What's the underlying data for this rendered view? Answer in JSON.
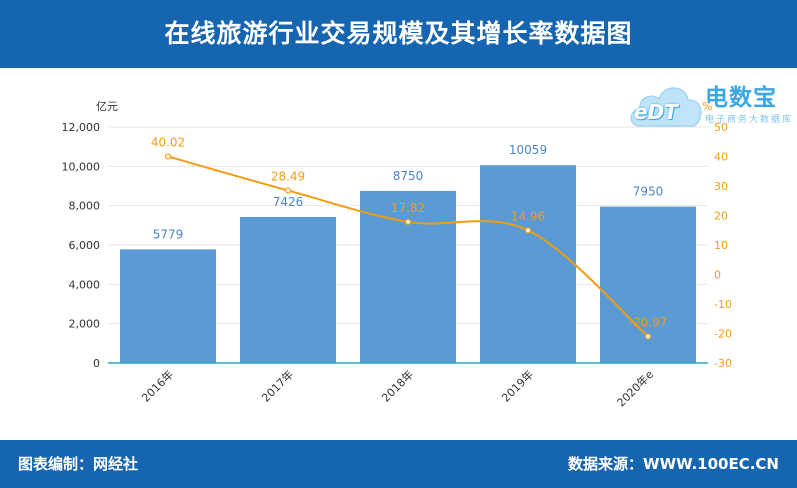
{
  "header": {
    "title": "在线旅游行业交易规模及其增长率数据图"
  },
  "footer": {
    "left": "图表编制：网经社",
    "right": "数据来源：WWW.100EC.CN"
  },
  "logo": {
    "main": "电数宝",
    "sub": "电子商务大数据库",
    "mark": "eDT"
  },
  "colors": {
    "banner": "#1565b0",
    "bar": "#5b9bd5",
    "line": "#f39c12"
  },
  "chart_data": {
    "type": "bar+line",
    "categories": [
      "2016年",
      "2017年",
      "2018年",
      "2019年",
      "2020年e"
    ],
    "series": [
      {
        "values": [
          5779,
          7426,
          8750,
          10059,
          7950
        ],
        "axis": "left",
        "kind": "bar"
      },
      {
        "values": [
          40.02,
          28.49,
          17.82,
          14.96,
          -20.97
        ],
        "axis": "right",
        "kind": "line"
      }
    ],
    "bar_labels": [
      "5779",
      "7426",
      "8750",
      "10059",
      "7950"
    ],
    "line_labels": [
      "40.02",
      "28.49",
      "17.82",
      "14.96",
      "-20.97"
    ],
    "y_left": {
      "unit": "亿元",
      "range": [
        0,
        12000
      ],
      "ticks": [
        "0",
        "2,000",
        "4,000",
        "6,000",
        "8,000",
        "10,000",
        "12,000"
      ]
    },
    "y_right": {
      "unit": "%",
      "range": [
        -30,
        50
      ],
      "ticks": [
        "-30",
        "-20",
        "-10",
        "0",
        "10",
        "20",
        "30",
        "40",
        "50"
      ]
    },
    "grid": true
  }
}
